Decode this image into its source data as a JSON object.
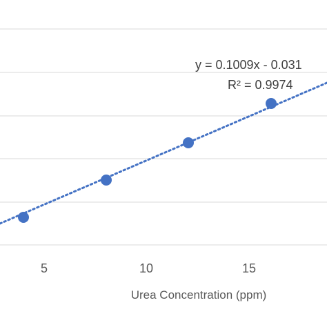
{
  "chart_data": {
    "type": "scatter",
    "xlabel": "Urea Concentration (ppm)",
    "ylabel": "",
    "x_ticks": [
      "5",
      "10",
      "15"
    ],
    "series": [
      {
        "x": [
          4,
          8,
          12,
          16
        ],
        "y": [
          0.37,
          0.79,
          1.18,
          1.58
        ],
        "marker_color": "#4472C4",
        "trendline": {
          "type": "linear",
          "slope": 0.1009,
          "intercept": -0.031,
          "style": "dotted",
          "color": "#4472C4",
          "equation": "y = 0.1009x - 0.031",
          "r_squared": "R² = 0.9974"
        }
      }
    ],
    "grid": true
  }
}
